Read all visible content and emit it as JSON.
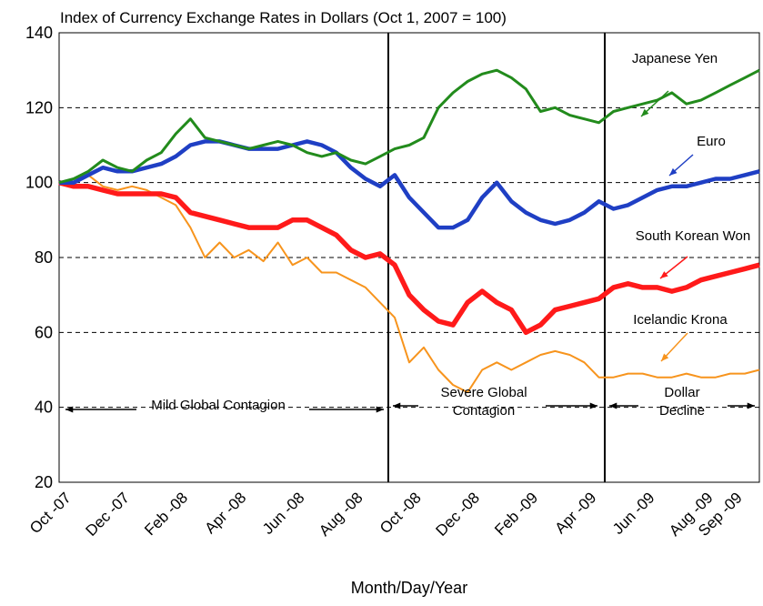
{
  "chart_data": {
    "type": "line",
    "title": "Index of Currency Exchange Rates in Dollars (Oct 1, 2007 = 100)",
    "x_label": "Month/Day/Year",
    "categories": [
      "Oct -07",
      null,
      null,
      null,
      "Dec -07",
      null,
      null,
      null,
      "Feb -08",
      null,
      null,
      null,
      "Apr -08",
      null,
      null,
      null,
      "Jun -08",
      null,
      null,
      null,
      "Aug -08",
      null,
      null,
      null,
      "Oct -08",
      null,
      null,
      null,
      "Dec -08",
      null,
      null,
      null,
      "Feb -09",
      null,
      null,
      null,
      "Apr -09",
      null,
      null,
      null,
      "Jun -09",
      null,
      null,
      null,
      "Aug -09",
      null,
      "Sep -09",
      null,
      null
    ],
    "series": [
      {
        "name": "Japanese Yen",
        "color": "#228b1c",
        "values": [
          100,
          101,
          103,
          106,
          104,
          103,
          106,
          108,
          113,
          117,
          112,
          111,
          110,
          109,
          110,
          111,
          110,
          108,
          107,
          108,
          106,
          105,
          107,
          109,
          110,
          112,
          120,
          124,
          127,
          129,
          130,
          128,
          125,
          119,
          120,
          118,
          117,
          116,
          119,
          120,
          121,
          122,
          124,
          121,
          122,
          124,
          126,
          128,
          130
        ]
      },
      {
        "name": "Euro",
        "color": "#1f3fc4",
        "values": [
          100,
          100,
          102,
          104,
          103,
          103,
          104,
          105,
          107,
          110,
          111,
          111,
          110,
          109,
          109,
          109,
          110,
          111,
          110,
          108,
          104,
          101,
          99,
          102,
          96,
          92,
          88,
          88,
          90,
          96,
          100,
          95,
          92,
          90,
          89,
          90,
          92,
          95,
          93,
          94,
          96,
          98,
          99,
          99,
          100,
          101,
          101,
          102,
          103
        ]
      },
      {
        "name": "South Korean Won",
        "color": "#ff1a1a",
        "values": [
          100,
          99,
          99,
          98,
          97,
          97,
          97,
          97,
          96,
          92,
          91,
          90,
          89,
          88,
          88,
          88,
          90,
          90,
          88,
          86,
          82,
          80,
          81,
          78,
          70,
          66,
          63,
          62,
          68,
          71,
          68,
          66,
          60,
          62,
          66,
          67,
          68,
          69,
          72,
          73,
          72,
          72,
          71,
          72,
          74,
          75,
          76,
          77,
          78
        ]
      },
      {
        "name": "Icelandic Krona",
        "color": "#f7941d",
        "values": [
          100,
          101,
          102,
          99,
          98,
          99,
          98,
          96,
          94,
          88,
          80,
          84,
          80,
          82,
          79,
          84,
          78,
          80,
          76,
          76,
          74,
          72,
          68,
          64,
          52,
          56,
          50,
          46,
          44,
          50,
          52,
          50,
          52,
          54,
          55,
          54,
          52,
          48,
          48,
          49,
          49,
          48,
          48,
          49,
          48,
          48,
          49,
          49,
          50
        ]
      }
    ],
    "annotations": [
      [
        "Mild Global Contagion"
      ],
      [
        "Severe Global",
        "Contagion"
      ],
      [
        "Dollar",
        "Decline"
      ]
    ],
    "ylim": [
      20,
      140
    ],
    "yticks": [
      20,
      40,
      60,
      80,
      100,
      120,
      140
    ],
    "grid": true
  }
}
